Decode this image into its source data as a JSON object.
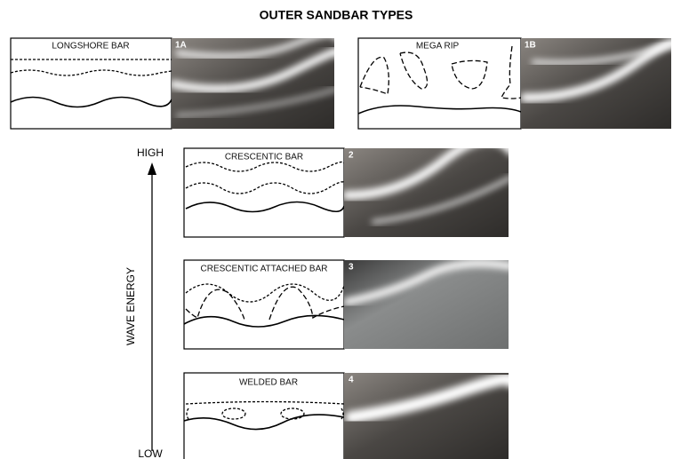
{
  "title": "OUTER SANDBAR TYPES",
  "axis": {
    "high": "HIGH",
    "low": "LOW",
    "label": "WAVE ENERGY"
  },
  "panels": [
    {
      "id": "1A",
      "label": "LONGSHORE BAR"
    },
    {
      "id": "1B",
      "label": "MEGA RIP"
    },
    {
      "id": "2",
      "label": "CRESCENTIC BAR"
    },
    {
      "id": "3",
      "label": "CRESCENTIC ATTACHED BAR"
    },
    {
      "id": "4",
      "label": "WELDED BAR"
    }
  ]
}
